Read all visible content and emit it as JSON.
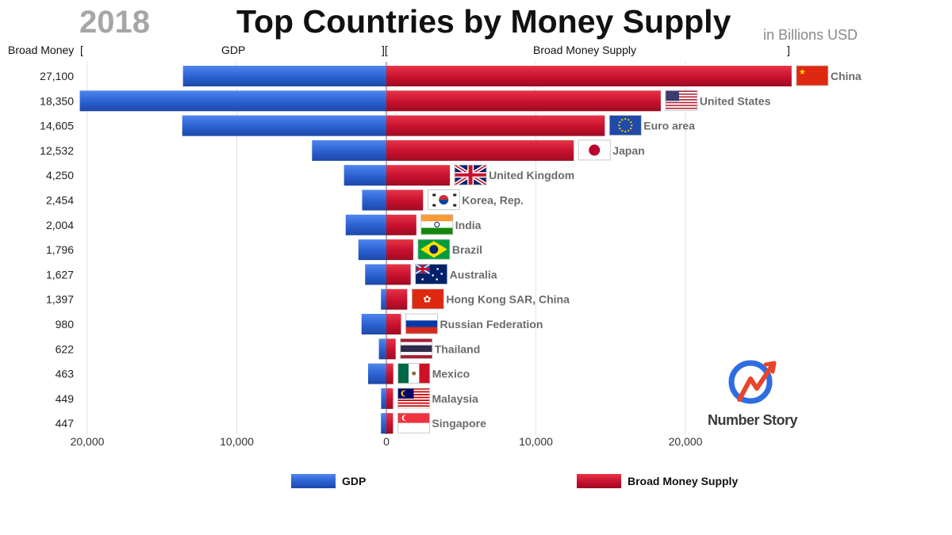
{
  "header": {
    "year": "2018",
    "title": "Top Countries by Money Supply",
    "unit": "in Billions USD",
    "col_broad_money": "Broad Money",
    "col_gdp": "GDP",
    "col_bms": "Broad Money Supply",
    "bracket_open": "[",
    "bracket_mid": "][",
    "bracket_close": "]"
  },
  "branding": {
    "text": "Number Story",
    "icon": "number-story-logo-icon"
  },
  "legend": [
    {
      "label": "GDP",
      "color": "#2a5fcf"
    },
    {
      "label": "Broad Money Supply",
      "color": "#c8102e"
    }
  ],
  "chart_data": {
    "type": "bar",
    "subtype": "diverging-horizontal",
    "categories": [
      "China",
      "United States",
      "Euro area",
      "Japan",
      "United Kingdom",
      "Korea, Rep.",
      "India",
      "Brazil",
      "Australia",
      "Hong Kong SAR, China",
      "Russian Federation",
      "Thailand",
      "Mexico",
      "Malaysia",
      "Singapore"
    ],
    "row_labels": [
      "27,100",
      "18,350",
      "14,605",
      "12,532",
      "4,250",
      "2,454",
      "2,004",
      "1,796",
      "1,627",
      "1,397",
      "980",
      "622",
      "463",
      "449",
      "447"
    ],
    "series": [
      {
        "name": "GDP",
        "color": "#2a5fcf",
        "direction": "left",
        "values": [
          13600,
          20500,
          13650,
          4970,
          2830,
          1620,
          2720,
          1870,
          1420,
          360,
          1660,
          500,
          1220,
          350,
          360
        ]
      },
      {
        "name": "Broad Money Supply",
        "color": "#c8102e",
        "direction": "right",
        "values": [
          27100,
          18350,
          14605,
          12532,
          4250,
          2454,
          2004,
          1796,
          1627,
          1397,
          980,
          622,
          463,
          449,
          447
        ]
      }
    ],
    "x_ticks": [
      "20,000",
      "10,000",
      "0",
      "10,000",
      "20,000"
    ],
    "x_tick_values": [
      -20000,
      -10000,
      0,
      10000,
      20000
    ],
    "xlim": [
      -20500,
      27100
    ],
    "flags": [
      "cn",
      "us",
      "eu",
      "jp",
      "gb",
      "kr",
      "in",
      "br",
      "au",
      "hk",
      "ru",
      "th",
      "mx",
      "my",
      "sg"
    ],
    "grid": true,
    "legend_position": "bottom"
  }
}
